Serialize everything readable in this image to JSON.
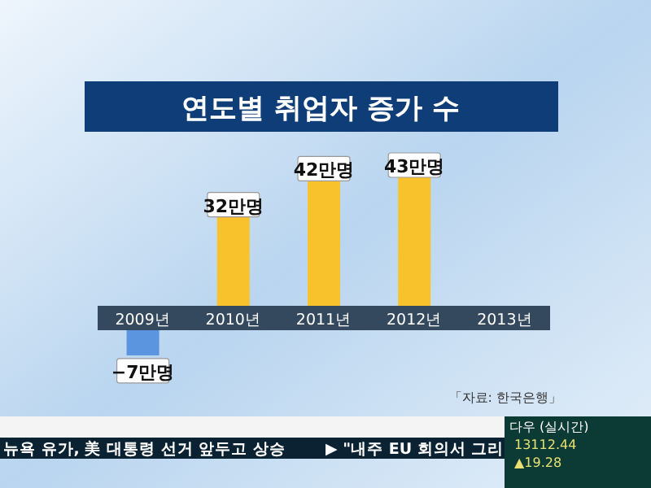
{
  "chart_data": {
    "type": "bar",
    "title": "연도별 취업자 증가 수",
    "categories": [
      "2009년",
      "2010년",
      "2011년",
      "2012년",
      "2013년"
    ],
    "values": [
      -7,
      32,
      42,
      43,
      null
    ],
    "colors": [
      "#5b95e0",
      "#f8c22c",
      "#f8c22c",
      "#f8c22c",
      "#f8c22c"
    ],
    "value_labels": [
      "−7만명",
      "32만명",
      "42만명",
      "43만명",
      null
    ],
    "annotations": [
      "「자료: 한국은행」",
      "뉴욕 유가, 美 대통령 선거 앞두고 상승",
      "▶ \"내주 EU 회의서 그리",
      "다우 (실시간)",
      "13112.44",
      "▲19.28"
    ]
  }
}
